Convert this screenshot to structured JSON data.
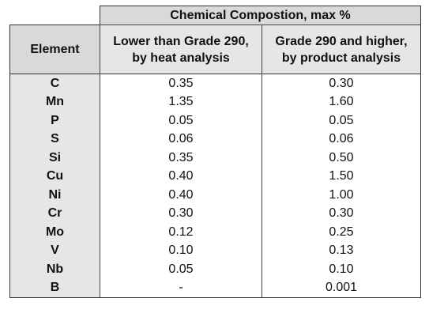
{
  "table": {
    "title": "Chemical Compostion, max %",
    "element_header": "Element",
    "col_a": {
      "line1": "Lower than Grade 290,",
      "line2": "by heat analysis"
    },
    "col_b": {
      "line1": "Grade 290 and higher,",
      "line2": "by product analysis"
    },
    "rows": [
      {
        "element": "C",
        "a": "0.35",
        "b": "0.30"
      },
      {
        "element": "Mn",
        "a": "1.35",
        "b": "1.60"
      },
      {
        "element": "P",
        "a": "0.05",
        "b": "0.05"
      },
      {
        "element": "S",
        "a": "0.06",
        "b": "0.06"
      },
      {
        "element": "Si",
        "a": "0.35",
        "b": "0.50"
      },
      {
        "element": "Cu",
        "a": "0.40",
        "b": "1.50"
      },
      {
        "element": "Ni",
        "a": "0.40",
        "b": "1.00"
      },
      {
        "element": "Cr",
        "a": "0.30",
        "b": "0.30"
      },
      {
        "element": "Mo",
        "a": "0.12",
        "b": "0.25"
      },
      {
        "element": "V",
        "a": "0.10",
        "b": "0.13"
      },
      {
        "element": "Nb",
        "a": "0.05",
        "b": "0.10"
      },
      {
        "element": "B",
        "a": "-",
        "b": "0.001"
      }
    ]
  }
}
